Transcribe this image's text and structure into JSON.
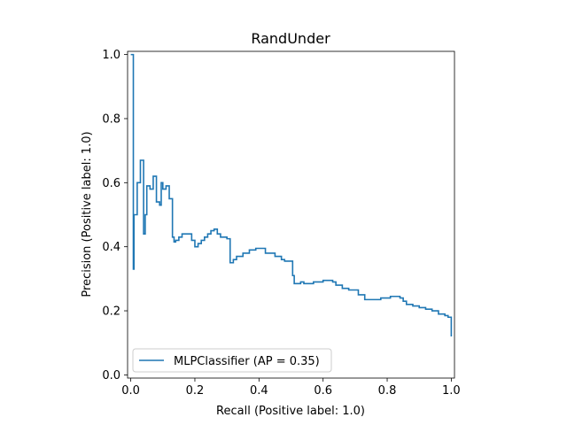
{
  "chart_data": {
    "type": "line",
    "title": "RandUnder",
    "xlabel": "Recall (Positive label: 1.0)",
    "ylabel": "Precision (Positive label: 1.0)",
    "xlim": [
      -0.01,
      1.01
    ],
    "ylim": [
      -0.01,
      1.01
    ],
    "x_ticks": [
      "0.0",
      "0.2",
      "0.4",
      "0.6",
      "0.8",
      "1.0"
    ],
    "y_ticks": [
      "0.0",
      "0.2",
      "0.4",
      "0.6",
      "0.8",
      "1.0"
    ],
    "grid": false,
    "legend_position": "lower-left",
    "step": true,
    "series": [
      {
        "name": "MLPClassifier (AP = 0.35)",
        "color": "#1f77b4",
        "points": [
          [
            1.0,
            0.12
          ],
          [
            1.0,
            0.18
          ],
          [
            0.99,
            0.18
          ],
          [
            0.99,
            0.185
          ],
          [
            0.98,
            0.185
          ],
          [
            0.98,
            0.19
          ],
          [
            0.96,
            0.19
          ],
          [
            0.96,
            0.2
          ],
          [
            0.94,
            0.2
          ],
          [
            0.94,
            0.205
          ],
          [
            0.92,
            0.205
          ],
          [
            0.92,
            0.21
          ],
          [
            0.9,
            0.21
          ],
          [
            0.9,
            0.215
          ],
          [
            0.88,
            0.215
          ],
          [
            0.88,
            0.22
          ],
          [
            0.86,
            0.22
          ],
          [
            0.86,
            0.23
          ],
          [
            0.85,
            0.23
          ],
          [
            0.85,
            0.24
          ],
          [
            0.84,
            0.24
          ],
          [
            0.84,
            0.245
          ],
          [
            0.81,
            0.245
          ],
          [
            0.81,
            0.24
          ],
          [
            0.78,
            0.24
          ],
          [
            0.78,
            0.235
          ],
          [
            0.73,
            0.235
          ],
          [
            0.73,
            0.25
          ],
          [
            0.71,
            0.25
          ],
          [
            0.71,
            0.265
          ],
          [
            0.68,
            0.265
          ],
          [
            0.68,
            0.27
          ],
          [
            0.66,
            0.27
          ],
          [
            0.66,
            0.28
          ],
          [
            0.64,
            0.28
          ],
          [
            0.64,
            0.29
          ],
          [
            0.63,
            0.29
          ],
          [
            0.63,
            0.295
          ],
          [
            0.6,
            0.295
          ],
          [
            0.6,
            0.29
          ],
          [
            0.57,
            0.29
          ],
          [
            0.57,
            0.285
          ],
          [
            0.54,
            0.285
          ],
          [
            0.54,
            0.29
          ],
          [
            0.53,
            0.29
          ],
          [
            0.53,
            0.285
          ],
          [
            0.51,
            0.285
          ],
          [
            0.51,
            0.31
          ],
          [
            0.505,
            0.31
          ],
          [
            0.505,
            0.355
          ],
          [
            0.48,
            0.355
          ],
          [
            0.48,
            0.36
          ],
          [
            0.47,
            0.36
          ],
          [
            0.47,
            0.37
          ],
          [
            0.45,
            0.37
          ],
          [
            0.45,
            0.38
          ],
          [
            0.42,
            0.38
          ],
          [
            0.42,
            0.395
          ],
          [
            0.39,
            0.395
          ],
          [
            0.39,
            0.39
          ],
          [
            0.37,
            0.39
          ],
          [
            0.37,
            0.38
          ],
          [
            0.35,
            0.38
          ],
          [
            0.35,
            0.37
          ],
          [
            0.33,
            0.37
          ],
          [
            0.33,
            0.36
          ],
          [
            0.32,
            0.36
          ],
          [
            0.32,
            0.35
          ],
          [
            0.31,
            0.35
          ],
          [
            0.31,
            0.425
          ],
          [
            0.3,
            0.425
          ],
          [
            0.3,
            0.43
          ],
          [
            0.28,
            0.43
          ],
          [
            0.28,
            0.44
          ],
          [
            0.27,
            0.44
          ],
          [
            0.27,
            0.455
          ],
          [
            0.26,
            0.455
          ],
          [
            0.26,
            0.45
          ],
          [
            0.25,
            0.45
          ],
          [
            0.25,
            0.44
          ],
          [
            0.24,
            0.44
          ],
          [
            0.24,
            0.43
          ],
          [
            0.23,
            0.43
          ],
          [
            0.23,
            0.42
          ],
          [
            0.22,
            0.42
          ],
          [
            0.22,
            0.41
          ],
          [
            0.21,
            0.41
          ],
          [
            0.21,
            0.4
          ],
          [
            0.2,
            0.4
          ],
          [
            0.2,
            0.42
          ],
          [
            0.19,
            0.42
          ],
          [
            0.19,
            0.44
          ],
          [
            0.16,
            0.44
          ],
          [
            0.16,
            0.43
          ],
          [
            0.15,
            0.43
          ],
          [
            0.15,
            0.42
          ],
          [
            0.14,
            0.42
          ],
          [
            0.14,
            0.415
          ],
          [
            0.135,
            0.415
          ],
          [
            0.135,
            0.43
          ],
          [
            0.13,
            0.43
          ],
          [
            0.13,
            0.55
          ],
          [
            0.12,
            0.55
          ],
          [
            0.12,
            0.59
          ],
          [
            0.11,
            0.59
          ],
          [
            0.11,
            0.58
          ],
          [
            0.1,
            0.58
          ],
          [
            0.1,
            0.6
          ],
          [
            0.095,
            0.6
          ],
          [
            0.095,
            0.53
          ],
          [
            0.09,
            0.53
          ],
          [
            0.09,
            0.54
          ],
          [
            0.08,
            0.54
          ],
          [
            0.08,
            0.62
          ],
          [
            0.07,
            0.62
          ],
          [
            0.07,
            0.58
          ],
          [
            0.06,
            0.58
          ],
          [
            0.06,
            0.59
          ],
          [
            0.05,
            0.59
          ],
          [
            0.05,
            0.5
          ],
          [
            0.045,
            0.5
          ],
          [
            0.045,
            0.44
          ],
          [
            0.04,
            0.44
          ],
          [
            0.04,
            0.67
          ],
          [
            0.03,
            0.67
          ],
          [
            0.03,
            0.6
          ],
          [
            0.02,
            0.6
          ],
          [
            0.02,
            0.5
          ],
          [
            0.01,
            0.5
          ],
          [
            0.01,
            0.33
          ],
          [
            0.008,
            0.33
          ],
          [
            0.008,
            1.0
          ],
          [
            0.0,
            1.0
          ]
        ]
      }
    ]
  }
}
